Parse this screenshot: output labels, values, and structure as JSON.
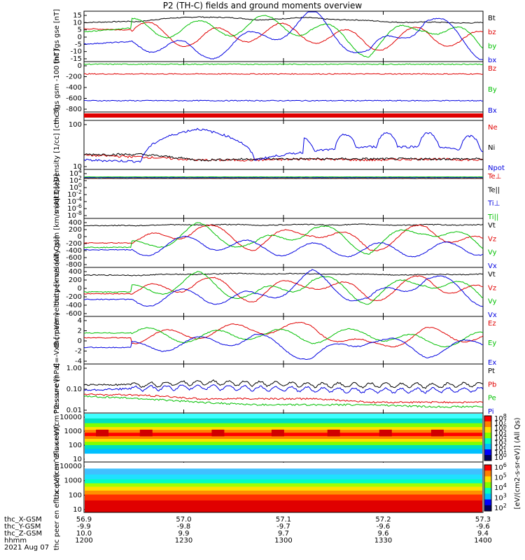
{
  "title": "P2 (TH-C) fields and ground moments overview",
  "colors": {
    "black": "#000000",
    "red": "#e00000",
    "green": "#00c000",
    "blue": "#0000e0"
  },
  "time_axis": {
    "rows": [
      {
        "label": "thc_X-GSM",
        "values": [
          "56.9",
          "57.0",
          "57.1",
          "57.2",
          "57.3"
        ]
      },
      {
        "label": "thc_Y-GSM",
        "values": [
          "-9.9",
          "-9.8",
          "-9.7",
          "-9.6",
          "-9.6"
        ]
      },
      {
        "label": "thc_Z-GSM",
        "values": [
          "10.0",
          "9.9",
          "9.7",
          "9.6",
          "9.4"
        ]
      },
      {
        "label": "hhmm",
        "values": [
          "1200",
          "1230",
          "1300",
          "1330",
          "1400"
        ]
      }
    ],
    "date": "2021 Aug 07"
  },
  "colorbar": {
    "label": "[eV/(cm2-s-sr-eV)] (All Qs)",
    "panel1_ticks": [
      "10^8",
      "10^7",
      "10^6",
      "10^5",
      "10^4",
      "10^3",
      "10^2",
      "10^1",
      "10^0"
    ],
    "panel2_ticks": [
      "10^6",
      "10^5",
      "10^4",
      "10^3",
      "10^2"
    ]
  },
  "chart_data": [
    {
      "id": "p1",
      "type": "line",
      "ylabel": "thc fgs gse [nT]",
      "yticks": [
        "15",
        "10",
        "5",
        "0",
        "-5",
        "-10",
        "-15"
      ],
      "ylim": [
        -15,
        15
      ],
      "series": [
        {
          "name": "Bt",
          "color": "black",
          "values": [
            9,
            10,
            13,
            11,
            12,
            10,
            9,
            9
          ]
        },
        {
          "name": "bz",
          "color": "red",
          "values": [
            5,
            4,
            -2,
            3,
            2,
            -4,
            1,
            -3
          ]
        },
        {
          "name": "by",
          "color": "green",
          "values": [
            3,
            6,
            4,
            8,
            6,
            -8,
            9,
            -6
          ]
        },
        {
          "name": "bx",
          "color": "blue",
          "values": [
            -5,
            -3,
            -11,
            -2,
            12,
            -12,
            12,
            -10
          ]
        }
      ]
    },
    {
      "id": "p2",
      "type": "line",
      "ylabel": "thc fgs gsm -100 [nT]",
      "yticks": [
        "0",
        "-200",
        "-400",
        "-600",
        "-800"
      ],
      "ylim": [
        -900,
        0
      ],
      "series": [
        {
          "name": "Bz",
          "color": "red",
          "values": [
            -200,
            -200,
            -200,
            -200,
            -200,
            -200,
            -200,
            -200
          ]
        },
        {
          "name": "By",
          "color": "green",
          "values": [
            -10,
            -10,
            -10,
            -10,
            -10,
            -10,
            -10,
            -10
          ]
        },
        {
          "name": "Bx",
          "color": "blue",
          "values": [
            -720,
            -720,
            -720,
            -720,
            -720,
            -720,
            -720,
            -720
          ]
        }
      ]
    },
    {
      "id": "p3",
      "type": "line",
      "ylabel": "Density [1/cc] [cm-3]",
      "yticks": [
        "100",
        "10"
      ],
      "series": [
        {
          "name": "Ne",
          "color": "red",
          "values": [
            14,
            12,
            9,
            9,
            10,
            9,
            10,
            9
          ]
        },
        {
          "name": "Ni",
          "color": "black",
          "values": [
            15,
            15,
            9,
            10,
            10,
            10,
            10,
            10
          ]
        },
        {
          "name": "Npot",
          "color": "blue",
          "values": [
            9,
            8,
            150,
            9,
            20,
            30,
            30,
            20
          ]
        }
      ]
    },
    {
      "id": "p4",
      "type": "line",
      "ylabel": "moqt3 [eV]",
      "yticks": [
        "10^4",
        "10^2",
        "10^0",
        "10^-2",
        "10^-4",
        "10^-6",
        "10^-8"
      ],
      "series": [
        {
          "name": "Te⊥",
          "color": "red",
          "values": [
            1000,
            1000,
            1000,
            1000,
            1000,
            1000,
            1000,
            1000
          ]
        },
        {
          "name": "Te||",
          "color": "black",
          "values": [
            1000,
            1000,
            1000,
            1000,
            1000,
            1000,
            1000,
            1000
          ]
        },
        {
          "name": "Ti⊥",
          "color": "blue",
          "values": [
            2000,
            2000,
            2000,
            2000,
            2000,
            2000,
            2000,
            2000
          ]
        },
        {
          "name": "Ti||",
          "color": "green",
          "values": [
            3000,
            3000,
            3000,
            3000,
            3000,
            3000,
            3000,
            3000
          ]
        }
      ]
    },
    {
      "id": "p5",
      "type": "line",
      "ylabel": "thc peir velocity gsm [km/s (All Qs)]",
      "yticks": [
        "400",
        "200",
        "0",
        "-200",
        "-400",
        "-600",
        "-800"
      ],
      "ylim": [
        -800,
        500
      ],
      "series": [
        {
          "name": "Vt",
          "color": "black",
          "values": [
            350,
            360,
            380,
            370,
            380,
            380,
            370,
            380
          ]
        },
        {
          "name": "Vz",
          "color": "red",
          "values": [
            -150,
            -150,
            300,
            -200,
            250,
            -250,
            250,
            -200
          ]
        },
        {
          "name": "Vy",
          "color": "green",
          "values": [
            -280,
            -280,
            250,
            -250,
            300,
            -300,
            300,
            -250
          ]
        },
        {
          "name": "Vx",
          "color": "blue",
          "values": [
            -350,
            -350,
            -100,
            -300,
            -350,
            -350,
            -350,
            -300
          ]
        }
      ]
    },
    {
      "id": "p6",
      "type": "line",
      "ylabel": "thc peer velocity [km/s (All Qs)]",
      "yticks": [
        "400",
        "200",
        "0",
        "-200",
        "-400",
        "-600"
      ],
      "ylim": [
        -700,
        500
      ],
      "series": [
        {
          "name": "Vt",
          "color": "black",
          "values": [
            350,
            350,
            380,
            390,
            380,
            370,
            360,
            380
          ]
        },
        {
          "name": "Vz",
          "color": "red",
          "values": [
            -150,
            -150,
            200,
            -200,
            200,
            -200,
            200,
            -150
          ]
        },
        {
          "name": "Vy",
          "color": "green",
          "values": [
            -100,
            -100,
            250,
            -250,
            250,
            -250,
            250,
            -200
          ]
        },
        {
          "name": "Vx",
          "color": "blue",
          "values": [
            -300,
            -300,
            -200,
            -300,
            300,
            -350,
            300,
            -300
          ]
        }
      ]
    },
    {
      "id": "p7",
      "type": "line",
      "ylabel": "E=-VxB [mV/m]",
      "yticks": [
        "4",
        "2",
        "0",
        "-2",
        "-4"
      ],
      "ylim": [
        -4,
        5
      ],
      "series": [
        {
          "name": "Ez",
          "color": "red",
          "values": [
            1,
            1,
            2,
            3,
            3,
            -1,
            2,
            1
          ]
        },
        {
          "name": "Ey",
          "color": "green",
          "values": [
            2,
            2,
            1,
            2,
            1,
            2,
            0,
            1
          ]
        },
        {
          "name": "Ex",
          "color": "blue",
          "values": [
            -1,
            -1,
            0,
            1,
            -3,
            1,
            -2,
            0
          ]
        }
      ]
    },
    {
      "id": "p8",
      "type": "line",
      "ylabel": "Pressure [nPa]",
      "yticks": [
        "1.00",
        "0.10",
        "0.01"
      ],
      "series": [
        {
          "name": "Pt",
          "color": "black",
          "values": [
            0.15,
            0.15,
            0.2,
            0.18,
            0.15,
            0.15,
            0.14,
            0.16
          ]
        },
        {
          "name": "Pb",
          "color": "red",
          "values": [
            0.05,
            0.045,
            0.03,
            0.03,
            0.03,
            0.02,
            0.02,
            0.02
          ]
        },
        {
          "name": "Pe",
          "color": "green",
          "values": [
            0.04,
            0.03,
            0.02,
            0.015,
            0.015,
            0.015,
            0.012,
            0.012
          ]
        },
        {
          "name": "Pi",
          "color": "blue",
          "values": [
            0.08,
            0.1,
            0.12,
            0.1,
            0.09,
            0.08,
            0.08,
            0.09
          ]
        }
      ]
    },
    {
      "id": "p9",
      "type": "heatmap",
      "ylabel": "thc peir en eflux eV/(cm^2-s-sr-eV)",
      "yticks": [
        "10000",
        "1000",
        "100",
        "10"
      ]
    },
    {
      "id": "p10",
      "type": "heatmap",
      "ylabel": "thc peer en eflux eV/(cm^2-s-sr-eV)",
      "yticks": [
        "10000",
        "1000",
        "100",
        "10"
      ]
    }
  ]
}
